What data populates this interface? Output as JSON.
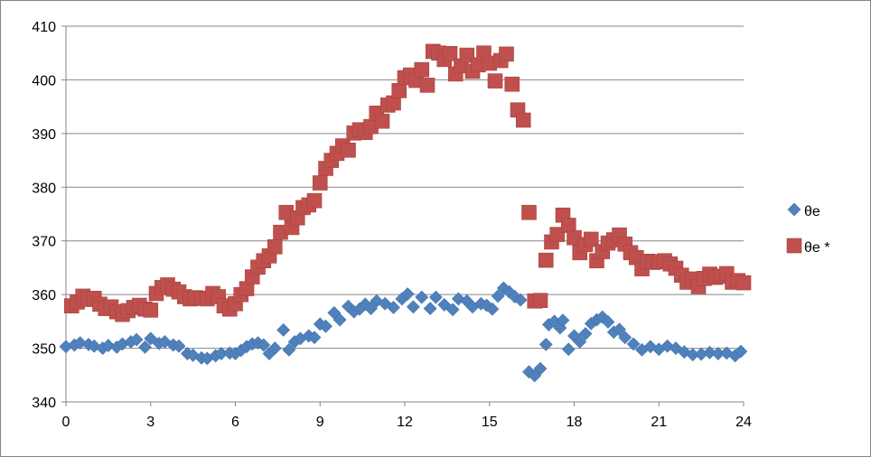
{
  "chart_data": {
    "type": "scatter",
    "title": "",
    "xlabel": "",
    "ylabel": "",
    "xlim": [
      0,
      24
    ],
    "ylim": [
      340,
      410
    ],
    "x_ticks": [
      0,
      3,
      6,
      9,
      12,
      15,
      18,
      21,
      24
    ],
    "y_ticks": [
      340,
      350,
      360,
      370,
      380,
      390,
      400,
      410
    ],
    "x_tick_labels": [
      "0",
      "3",
      "6",
      "9",
      "12",
      "15",
      "18",
      "21",
      "24"
    ],
    "y_tick_labels": [
      "340",
      "350",
      "360",
      "370",
      "380",
      "390",
      "400",
      "410"
    ],
    "grid": "horizontal major gridlines",
    "legend_position": "right",
    "series": [
      {
        "name": "θe",
        "marker": "diamond",
        "color": "#4F81BD",
        "points": [
          [
            0.0,
            350.3
          ],
          [
            0.3,
            350.6
          ],
          [
            0.5,
            351.0
          ],
          [
            0.8,
            350.7
          ],
          [
            1.0,
            350.4
          ],
          [
            1.3,
            350.0
          ],
          [
            1.5,
            350.5
          ],
          [
            1.8,
            350.2
          ],
          [
            2.0,
            350.8
          ],
          [
            2.3,
            351.2
          ],
          [
            2.5,
            351.6
          ],
          [
            2.8,
            350.2
          ],
          [
            3.0,
            351.8
          ],
          [
            3.3,
            350.9
          ],
          [
            3.5,
            351.2
          ],
          [
            3.8,
            350.6
          ],
          [
            4.0,
            350.4
          ],
          [
            4.3,
            349.0
          ],
          [
            4.5,
            348.7
          ],
          [
            4.8,
            348.2
          ],
          [
            5.0,
            348.1
          ],
          [
            5.3,
            348.6
          ],
          [
            5.5,
            349.0
          ],
          [
            5.8,
            349.1
          ],
          [
            6.0,
            349.0
          ],
          [
            6.2,
            349.6
          ],
          [
            6.4,
            350.3
          ],
          [
            6.6,
            350.8
          ],
          [
            6.8,
            351.0
          ],
          [
            7.0,
            350.6
          ],
          [
            7.2,
            349.0
          ],
          [
            7.4,
            350.0
          ],
          [
            7.7,
            353.4
          ],
          [
            7.9,
            349.7
          ],
          [
            8.1,
            351.2
          ],
          [
            8.3,
            351.8
          ],
          [
            8.6,
            352.3
          ],
          [
            8.8,
            352.0
          ],
          [
            9.0,
            354.5
          ],
          [
            9.2,
            354.1
          ],
          [
            9.5,
            356.6
          ],
          [
            9.7,
            355.3
          ],
          [
            10.0,
            357.8
          ],
          [
            10.2,
            356.8
          ],
          [
            10.4,
            357.3
          ],
          [
            10.6,
            358.2
          ],
          [
            10.8,
            357.4
          ],
          [
            11.0,
            358.8
          ],
          [
            11.3,
            358.3
          ],
          [
            11.6,
            357.6
          ],
          [
            11.9,
            359.2
          ],
          [
            12.1,
            360.1
          ],
          [
            12.3,
            357.7
          ],
          [
            12.6,
            359.5
          ],
          [
            12.9,
            357.4
          ],
          [
            13.1,
            359.5
          ],
          [
            13.4,
            358.1
          ],
          [
            13.7,
            357.2
          ],
          [
            13.9,
            359.2
          ],
          [
            14.2,
            358.8
          ],
          [
            14.4,
            357.7
          ],
          [
            14.7,
            358.3
          ],
          [
            14.9,
            358.0
          ],
          [
            15.1,
            357.3
          ],
          [
            15.3,
            359.7
          ],
          [
            15.5,
            361.2
          ],
          [
            15.7,
            360.5
          ],
          [
            15.9,
            359.6
          ],
          [
            16.1,
            359.0
          ],
          [
            16.4,
            345.6
          ],
          [
            16.6,
            344.9
          ],
          [
            16.8,
            346.2
          ],
          [
            17.0,
            350.7
          ],
          [
            17.1,
            354.4
          ],
          [
            17.3,
            355.0
          ],
          [
            17.5,
            353.8
          ],
          [
            17.6,
            355.2
          ],
          [
            17.8,
            349.8
          ],
          [
            18.0,
            352.3
          ],
          [
            18.2,
            351.2
          ],
          [
            18.4,
            352.7
          ],
          [
            18.6,
            354.6
          ],
          [
            18.8,
            355.3
          ],
          [
            19.0,
            355.8
          ],
          [
            19.2,
            354.9
          ],
          [
            19.4,
            353.0
          ],
          [
            19.6,
            353.5
          ],
          [
            19.8,
            352.0
          ],
          [
            20.1,
            350.8
          ],
          [
            20.4,
            349.7
          ],
          [
            20.7,
            350.3
          ],
          [
            21.0,
            349.8
          ],
          [
            21.3,
            350.4
          ],
          [
            21.6,
            350.0
          ],
          [
            21.9,
            349.3
          ],
          [
            22.2,
            348.8
          ],
          [
            22.5,
            348.9
          ],
          [
            22.8,
            349.2
          ],
          [
            23.1,
            349.0
          ],
          [
            23.4,
            349.1
          ],
          [
            23.7,
            348.6
          ],
          [
            23.9,
            349.4
          ]
        ]
      },
      {
        "name": "θe *",
        "marker": "square",
        "color": "#C0504D",
        "points": [
          [
            0.2,
            357.9
          ],
          [
            0.4,
            358.6
          ],
          [
            0.6,
            359.7
          ],
          [
            0.8,
            359.1
          ],
          [
            1.0,
            359.3
          ],
          [
            1.2,
            358.2
          ],
          [
            1.4,
            357.4
          ],
          [
            1.6,
            357.7
          ],
          [
            1.8,
            356.8
          ],
          [
            2.0,
            356.3
          ],
          [
            2.2,
            357.0
          ],
          [
            2.4,
            357.6
          ],
          [
            2.6,
            358.0
          ],
          [
            2.8,
            357.3
          ],
          [
            3.0,
            357.1
          ],
          [
            3.2,
            360.2
          ],
          [
            3.4,
            361.3
          ],
          [
            3.6,
            361.8
          ],
          [
            3.8,
            361.0
          ],
          [
            4.0,
            360.5
          ],
          [
            4.2,
            359.6
          ],
          [
            4.4,
            359.2
          ],
          [
            4.6,
            359.4
          ],
          [
            4.8,
            359.3
          ],
          [
            5.0,
            359.2
          ],
          [
            5.2,
            360.2
          ],
          [
            5.4,
            359.6
          ],
          [
            5.6,
            357.9
          ],
          [
            5.8,
            357.3
          ],
          [
            6.0,
            358.3
          ],
          [
            6.2,
            360.0
          ],
          [
            6.4,
            361.1
          ],
          [
            6.6,
            363.3
          ],
          [
            6.8,
            365.1
          ],
          [
            7.0,
            366.3
          ],
          [
            7.2,
            367.2
          ],
          [
            7.4,
            368.9
          ],
          [
            7.6,
            371.6
          ],
          [
            7.8,
            375.3
          ],
          [
            8.0,
            372.5
          ],
          [
            8.2,
            374.3
          ],
          [
            8.4,
            376.2
          ],
          [
            8.6,
            376.7
          ],
          [
            8.8,
            377.5
          ],
          [
            9.0,
            380.8
          ],
          [
            9.2,
            383.5
          ],
          [
            9.4,
            385.0
          ],
          [
            9.6,
            386.3
          ],
          [
            9.8,
            387.7
          ],
          [
            10.0,
            386.9
          ],
          [
            10.2,
            390.1
          ],
          [
            10.4,
            390.7
          ],
          [
            10.6,
            390.2
          ],
          [
            10.8,
            391.3
          ],
          [
            11.0,
            393.8
          ],
          [
            11.2,
            392.3
          ],
          [
            11.4,
            395.3
          ],
          [
            11.6,
            395.7
          ],
          [
            11.8,
            398.0
          ],
          [
            12.0,
            400.4
          ],
          [
            12.2,
            400.9
          ],
          [
            12.4,
            399.9
          ],
          [
            12.6,
            401.9
          ],
          [
            12.8,
            399.0
          ],
          [
            13.0,
            405.3
          ],
          [
            13.2,
            405.0
          ],
          [
            13.4,
            403.8
          ],
          [
            13.6,
            404.9
          ],
          [
            13.8,
            401.1
          ],
          [
            14.0,
            402.6
          ],
          [
            14.2,
            404.6
          ],
          [
            14.4,
            401.6
          ],
          [
            14.6,
            402.8
          ],
          [
            14.8,
            405.0
          ],
          [
            15.0,
            403.1
          ],
          [
            15.2,
            399.8
          ],
          [
            15.4,
            403.6
          ],
          [
            15.6,
            404.8
          ],
          [
            15.8,
            399.2
          ],
          [
            16.0,
            394.4
          ],
          [
            16.2,
            392.5
          ],
          [
            16.4,
            375.3
          ],
          [
            16.6,
            358.8
          ],
          [
            16.8,
            358.9
          ],
          [
            17.0,
            366.4
          ],
          [
            17.2,
            369.8
          ],
          [
            17.4,
            371.2
          ],
          [
            17.6,
            374.8
          ],
          [
            17.8,
            372.9
          ],
          [
            18.0,
            370.6
          ],
          [
            18.2,
            367.8
          ],
          [
            18.4,
            369.3
          ],
          [
            18.6,
            370.3
          ],
          [
            18.8,
            366.3
          ],
          [
            19.0,
            368.0
          ],
          [
            19.2,
            369.6
          ],
          [
            19.4,
            370.2
          ],
          [
            19.6,
            371.1
          ],
          [
            19.8,
            369.4
          ],
          [
            20.0,
            367.8
          ],
          [
            20.2,
            366.9
          ],
          [
            20.4,
            364.8
          ],
          [
            20.6,
            366.2
          ],
          [
            20.8,
            366.0
          ],
          [
            21.0,
            366.1
          ],
          [
            21.2,
            366.3
          ],
          [
            21.4,
            365.7
          ],
          [
            21.6,
            364.9
          ],
          [
            21.8,
            363.6
          ],
          [
            22.0,
            362.3
          ],
          [
            22.2,
            362.9
          ],
          [
            22.4,
            361.5
          ],
          [
            22.6,
            363.0
          ],
          [
            22.8,
            363.8
          ],
          [
            23.0,
            363.2
          ],
          [
            23.2,
            363.4
          ],
          [
            23.4,
            363.9
          ],
          [
            23.6,
            362.3
          ],
          [
            23.8,
            362.6
          ],
          [
            24.0,
            362.2
          ]
        ]
      }
    ]
  }
}
